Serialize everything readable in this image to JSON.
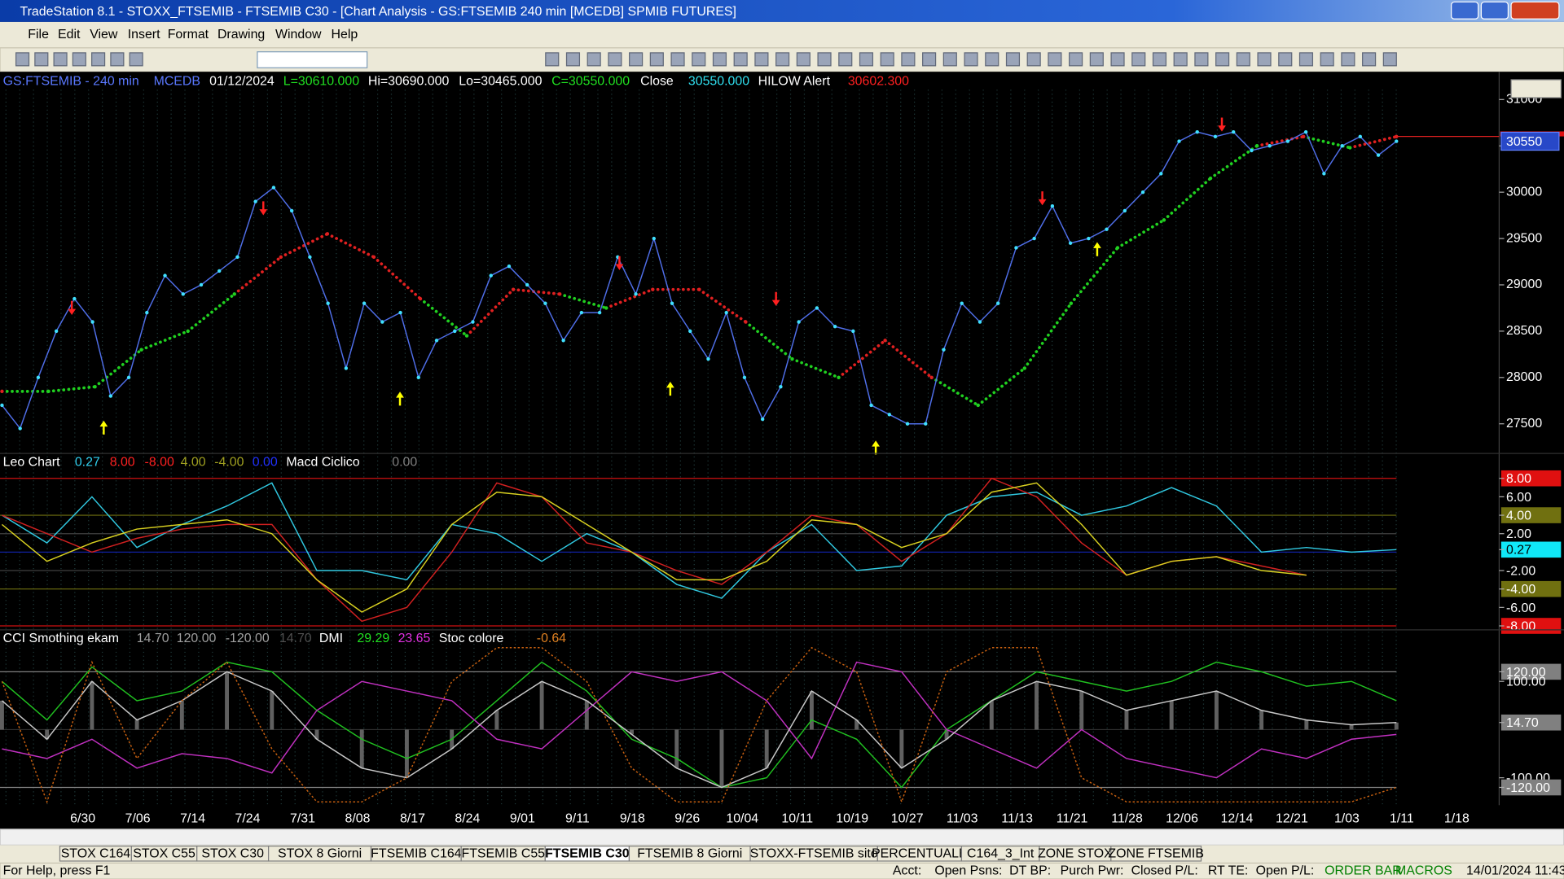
{
  "window": {
    "title": "TradeStation 8.1 - STOXX_FTSEMIB - FTSEMIB C30 - [Chart Analysis - GS:FTSEMIB  240 min  [MCEDB] SPMIB FUTURES]",
    "menu": [
      "File",
      "Edit",
      "View",
      "Insert",
      "Format",
      "Drawing",
      "Window",
      "Help"
    ]
  },
  "price_header": [
    {
      "text": "GS:FTSEMIB - 240 min",
      "color": "#5a78ff"
    },
    {
      "text": "MCEDB",
      "color": "#5a78ff"
    },
    {
      "text": "01/12/2024",
      "color": "#ffffff"
    },
    {
      "text": "L=30610.000",
      "color": "#20e020"
    },
    {
      "text": "Hi=30690.000",
      "color": "#ffffff"
    },
    {
      "text": "Lo=30465.000",
      "color": "#ffffff"
    },
    {
      "text": "C=30550.000",
      "color": "#20e020"
    },
    {
      "text": "Close",
      "color": "#ffffff"
    },
    {
      "text": "30550.000",
      "color": "#30e0f0"
    },
    {
      "text": "HILOW Alert",
      "color": "#ffffff"
    },
    {
      "text": "30602.300",
      "color": "#ff2020"
    }
  ],
  "price_chart": {
    "type": "line",
    "categories": [
      "6/30",
      "7/06",
      "7/14",
      "7/24",
      "7/31",
      "8/08",
      "8/17",
      "8/24",
      "9/01",
      "9/11",
      "9/18",
      "9/26",
      "10/04",
      "10/11",
      "10/19",
      "10/27",
      "11/03",
      "11/13",
      "11/21",
      "11/28",
      "12/06",
      "12/14",
      "12/21",
      "1/03",
      "1/11",
      "1/18"
    ],
    "ylim": [
      27180,
      31300
    ],
    "yticks": [
      27500,
      28000,
      28500,
      29000,
      29500,
      30000,
      30500,
      31000
    ],
    "close": {
      "color": "#4f6ee8",
      "point_color": "#40e0ff",
      "values": [
        27700,
        27450,
        28000,
        28500,
        28850,
        28600,
        27800,
        28000,
        28700,
        29100,
        28900,
        29000,
        29150,
        29300,
        29900,
        30050,
        29800,
        29300,
        28800,
        28100,
        28800,
        28600,
        28700,
        28000,
        28400,
        28500,
        28600,
        29100,
        29200,
        29000,
        28800,
        28400,
        28700,
        28700,
        29300,
        28900,
        29500,
        28800,
        28500,
        28200,
        28700,
        28000,
        27550,
        27900,
        28600,
        28750,
        28550,
        28500,
        27700,
        27600,
        27500,
        27500,
        28300,
        28800,
        28600,
        28800,
        29400,
        29500,
        29850,
        29450,
        29500,
        29600,
        29800,
        30000,
        30200,
        30550,
        30650,
        30600,
        30650,
        30450,
        30500,
        30550,
        30650,
        30200,
        30500,
        30600,
        30400,
        30550
      ]
    },
    "ma": {
      "values": [
        27850,
        27850,
        27900,
        28300,
        28500,
        28900,
        29300,
        29550,
        29300,
        28850,
        28450,
        28950,
        28900,
        28750,
        28950,
        28950,
        28600,
        28200,
        28000,
        28400,
        28000,
        27700,
        28100,
        28800,
        29400,
        29700,
        30150,
        30500,
        30600,
        30480,
        30600
      ],
      "colors": [
        "#e02020",
        "#20d020",
        "#20d020",
        "#20d020",
        "#20d020",
        "#20d020",
        "#e02020",
        "#e02020",
        "#e02020",
        "#e02020",
        "#20d020",
        "#e02020",
        "#e02020",
        "#20d020",
        "#e02020",
        "#e02020",
        "#e02020",
        "#20d020",
        "#20d020",
        "#e02020",
        "#e02020",
        "#20d020",
        "#20d020",
        "#20d020",
        "#20d020",
        "#20d020",
        "#20d020",
        "#20d020",
        "#e02020",
        "#20d020",
        "#e02020"
      ]
    },
    "last_price": {
      "value": 30550,
      "label": "30550"
    },
    "alert_level": 30602.3
  },
  "panel1": {
    "header": [
      {
        "text": "Leo Chart",
        "color": "#ffffff"
      },
      {
        "text": "0.27",
        "color": "#30d0f0"
      },
      {
        "text": "8.00",
        "color": "#ff2020"
      },
      {
        "text": "-8.00",
        "color": "#ff2020"
      },
      {
        "text": "4.00",
        "color": "#a0a020"
      },
      {
        "text": "-4.00",
        "color": "#a0a020"
      },
      {
        "text": "0.00",
        "color": "#2030ff"
      },
      {
        "text": "Macd Ciclico",
        "color": "#ffffff"
      },
      {
        "text": "0.00",
        "color": "#808080"
      }
    ],
    "ylim": [
      -8.43,
      10.7
    ],
    "yticks": [
      {
        "value": 8,
        "label": "8.00"
      },
      {
        "value": 6,
        "label": "6.00"
      },
      {
        "value": 4,
        "label": "4.00"
      },
      {
        "value": 2,
        "label": "2.00"
      },
      {
        "value": 0.27,
        "label": "0.27"
      },
      {
        "value": -2,
        "label": "-2.00"
      },
      {
        "value": -4,
        "label": "-4.00"
      },
      {
        "value": -6,
        "label": "-6.00"
      },
      {
        "value": -8,
        "label": "-8.00"
      }
    ],
    "tick_backgrounds": [
      "#e01010",
      null,
      "#707010",
      null,
      "#10e8f8",
      null,
      "#707010",
      null,
      "#e01010"
    ],
    "levels": [
      {
        "value": 8,
        "color": "#d01010"
      },
      {
        "value": 4,
        "color": "#707010"
      },
      {
        "value": 2,
        "color": "#404040"
      },
      {
        "value": 0,
        "color": "#1020a0"
      },
      {
        "value": -2,
        "color": "#404040"
      },
      {
        "value": -4,
        "color": "#707010"
      },
      {
        "value": -8,
        "color": "#d01010"
      }
    ],
    "lines": [
      {
        "color": "#30c8e0",
        "values": [
          4,
          1,
          6,
          0.5,
          3,
          5,
          7.5,
          -2,
          -2,
          -3,
          3,
          2,
          -1,
          2,
          0,
          -3.5,
          -5,
          0,
          3,
          -2,
          -1.5,
          4,
          6,
          6.5,
          4,
          5,
          7,
          5,
          0,
          0.5,
          0,
          0.27
        ]
      },
      {
        "color": "#d02020",
        "values": [
          4,
          2,
          0,
          1.5,
          2.5,
          3,
          3,
          -3,
          -7.5,
          -6,
          0,
          7.5,
          6,
          1,
          0,
          -2,
          -3.5,
          0,
          4,
          3,
          -1,
          2,
          8,
          6,
          1,
          -2.5,
          -1,
          -0.5,
          -1.5,
          -2.5,
          null,
          null
        ]
      },
      {
        "color": "#d8d020",
        "values": [
          3,
          -1,
          1,
          2.5,
          3,
          3.5,
          2,
          -3,
          -6.5,
          -4,
          3,
          6.5,
          6,
          3,
          0,
          -3,
          -3,
          -1,
          3.5,
          3,
          0.5,
          2,
          6.5,
          7.5,
          3,
          -2.5,
          -1,
          -0.5,
          -2,
          -2.5,
          null,
          null
        ]
      }
    ]
  },
  "panel2": {
    "header": [
      {
        "text": "CCI Smothing ekam",
        "color": "#ffffff"
      },
      {
        "text": "14.70",
        "color": "#a0a0a0"
      },
      {
        "text": "120.00",
        "color": "#a0a0a0"
      },
      {
        "text": "-120.00",
        "color": "#a0a0a0"
      },
      {
        "text": "14.70",
        "color": "#505050"
      },
      {
        "text": "DMI",
        "color": "#ffffff"
      },
      {
        "text": "29.29",
        "color": "#20e020"
      },
      {
        "text": "23.65",
        "color": "#e030e0"
      },
      {
        "text": "Stoc colore",
        "color": "#ffffff"
      },
      {
        "text": "-0.64",
        "color": "#e08020"
      }
    ],
    "ylim": [
      -157,
      207
    ],
    "yticks": [
      {
        "value": 120,
        "label": "120.00"
      },
      {
        "value": 100,
        "label": "100.00"
      },
      {
        "value": 14.7,
        "label": "14.70"
      },
      {
        "value": -100,
        "label": "-100.00"
      },
      {
        "value": -120,
        "label": "-120.00"
      }
    ],
    "tick_backgrounds": [
      "#808080",
      null,
      "#808080",
      null,
      "#808080"
    ],
    "levels": [
      {
        "value": 120,
        "color": "#808080"
      },
      {
        "value": 0,
        "color": "#303030"
      },
      {
        "value": -120,
        "color": "#808080"
      }
    ],
    "histogram": "#606060",
    "lines": [
      {
        "color": "#20c020",
        "values": [
          100,
          20,
          130,
          60,
          80,
          140,
          120,
          40,
          -20,
          -60,
          -20,
          60,
          140,
          80,
          -20,
          -60,
          -120,
          -100,
          20,
          -20,
          -120,
          0,
          60,
          120,
          100,
          80,
          100,
          140,
          120,
          90,
          100,
          60
        ]
      },
      {
        "color": "#c030c0",
        "values": [
          -40,
          -60,
          -20,
          -80,
          -50,
          -60,
          -90,
          40,
          100,
          80,
          60,
          -20,
          -40,
          40,
          120,
          100,
          120,
          60,
          -60,
          140,
          120,
          0,
          -40,
          -80,
          0,
          -60,
          -80,
          -100,
          -40,
          -60,
          -20,
          -10
        ]
      },
      {
        "color": "#c8c8c8",
        "values": [
          60,
          -20,
          100,
          20,
          60,
          120,
          80,
          -20,
          -80,
          -100,
          -40,
          40,
          100,
          60,
          -10,
          -80,
          -120,
          -80,
          80,
          20,
          -80,
          -20,
          60,
          100,
          80,
          40,
          60,
          80,
          40,
          20,
          10,
          14.7
        ]
      },
      {
        "color": "#c86010",
        "dashed": true,
        "values": [
          100,
          -150,
          140,
          -60,
          60,
          140,
          -40,
          -150,
          -150,
          -100,
          100,
          170,
          170,
          100,
          -80,
          -150,
          -150,
          60,
          170,
          120,
          -150,
          120,
          170,
          170,
          -100,
          -150,
          -150,
          -150,
          -150,
          -150,
          -150,
          -120
        ]
      }
    ]
  },
  "tabs": [
    "STOX C164",
    "STOX C55",
    "STOX  C30",
    "STOX  8 Giorni",
    "FTSEMIB C164",
    "FTSEMIB C55",
    "FTSEMIB C30",
    "FTSEMIB  8 Giorni",
    "STOXX-FTSEMIB sito",
    "PERCENTUALE",
    "C164_3_Int",
    "ZONE STOX",
    "ZONE FTSEMIB"
  ],
  "active_tab": 6,
  "status": [
    "For Help, press F1",
    "Acct:",
    "Open Psns:",
    "DT BP:",
    "Purch Pwr:",
    "Closed P/L:",
    "RT TE:",
    "Open P/L:",
    "ORDER BAR",
    "MACROS",
    "14/01/2024 11:43"
  ]
}
